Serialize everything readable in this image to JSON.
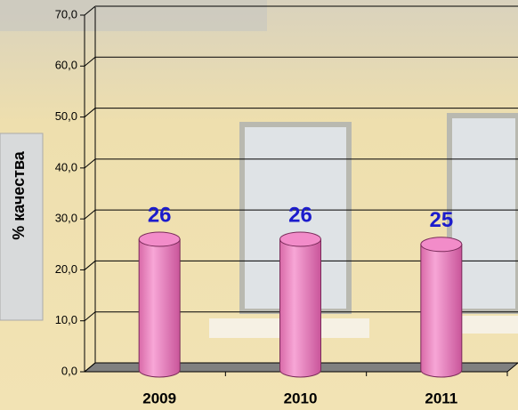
{
  "chart_data": {
    "type": "bar",
    "y_label": "% качества",
    "categories": [
      "2009",
      "2010",
      "2011"
    ],
    "values": [
      26,
      26,
      25
    ],
    "color": "#f28cc9",
    "ylim": [
      0,
      70
    ],
    "yticks": [
      {
        "value": 0,
        "label": "0,0"
      },
      {
        "value": 10,
        "label": "10,0"
      },
      {
        "value": 20,
        "label": "20,0"
      },
      {
        "value": 30,
        "label": "30,0"
      },
      {
        "value": 40,
        "label": "40,0"
      },
      {
        "value": 50,
        "label": "50,0"
      },
      {
        "value": 60,
        "label": "60,0"
      },
      {
        "value": 70,
        "label": "70,0"
      }
    ],
    "grid": true
  }
}
